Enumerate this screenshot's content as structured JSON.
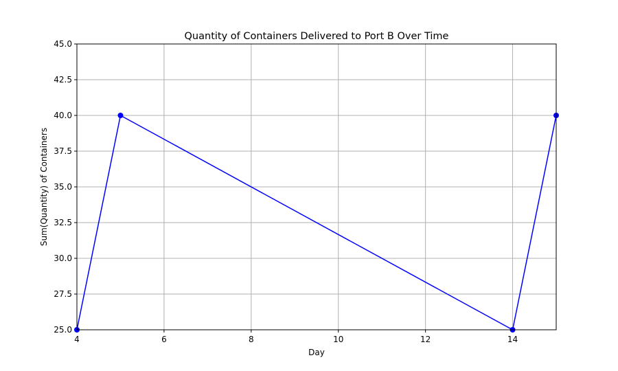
{
  "chart_data": {
    "type": "line",
    "title": "Quantity of Containers Delivered to Port B Over Time",
    "xlabel": "Day",
    "ylabel": "Sum(Quantity) of Containers",
    "x": [
      4,
      5,
      14,
      15
    ],
    "series": [
      {
        "values": [
          25,
          40,
          25,
          40
        ],
        "color": "#0000ff",
        "marker": "circle"
      }
    ],
    "xlim": [
      4,
      15
    ],
    "ylim": [
      25,
      45
    ],
    "xticks": [
      4,
      6,
      8,
      10,
      12,
      14
    ],
    "yticks": [
      25.0,
      27.5,
      30.0,
      32.5,
      35.0,
      37.5,
      40.0,
      42.5,
      45.0
    ],
    "xtick_labels": [
      "4",
      "6",
      "8",
      "10",
      "12",
      "14"
    ],
    "ytick_labels": [
      "25.0",
      "27.5",
      "30.0",
      "32.5",
      "35.0",
      "37.5",
      "40.0",
      "42.5",
      "45.0"
    ],
    "grid": true,
    "grid_color": "#b0b0b0",
    "legend": "none"
  }
}
